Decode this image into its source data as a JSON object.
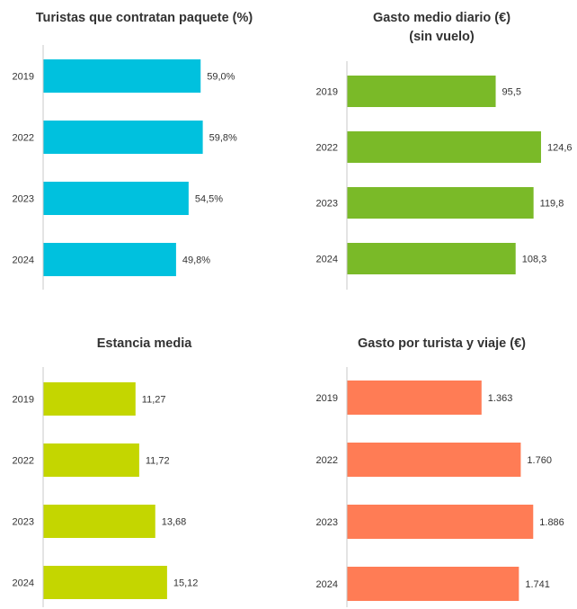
{
  "chart_data": [
    {
      "type": "bar",
      "orientation": "horizontal",
      "title": [
        "Turistas que contratan paquete (%)"
      ],
      "categories": [
        "2019",
        "2022",
        "2023",
        "2024"
      ],
      "values": [
        59.0,
        59.8,
        54.5,
        49.8
      ],
      "value_labels": [
        "59,0%",
        "59,8%",
        "54,5%",
        "49,8%"
      ],
      "color": "#00c1de",
      "xlim": [
        0,
        100
      ]
    },
    {
      "type": "bar",
      "orientation": "horizontal",
      "title": [
        "Gasto medio diario (€)",
        "(sin vuelo)"
      ],
      "categories": [
        "2019",
        "2022",
        "2023",
        "2024"
      ],
      "values": [
        95.5,
        124.6,
        119.8,
        108.3
      ],
      "value_labels": [
        "95,5",
        "124,6",
        "119,8",
        "108,3"
      ],
      "color": "#7aba28",
      "xlim": [
        0,
        150
      ]
    },
    {
      "type": "bar",
      "orientation": "horizontal",
      "title": [
        "Estancia media"
      ],
      "categories": [
        "2019",
        "2022",
        "2023",
        "2024"
      ],
      "values": [
        11.27,
        11.72,
        13.68,
        15.12
      ],
      "value_labels": [
        "11,27",
        "11,72",
        "13,68",
        "15,12"
      ],
      "color": "#c4d600",
      "xlim": [
        0,
        25
      ]
    },
    {
      "type": "bar",
      "orientation": "horizontal",
      "title": [
        "Gasto por turista y viaje (€)"
      ],
      "categories": [
        "2019",
        "2022",
        "2023",
        "2024"
      ],
      "values": [
        1363,
        1760,
        1886,
        1741
      ],
      "value_labels": [
        "1.363",
        "1.760",
        "1.886",
        "1.741"
      ],
      "color": "#ff7c55",
      "xlim": [
        0,
        2020
      ]
    }
  ]
}
